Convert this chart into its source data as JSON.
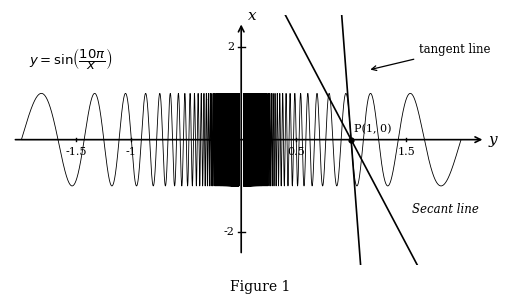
{
  "title": "Figure 1",
  "equation_label": "y = \\sin\\!\\left(\\dfrac{10\\pi}{x}\\right)",
  "x_axis_label": "x",
  "y_axis_label": "y",
  "point_label": "P(1, 0)",
  "tangent_label": "tangent line",
  "secant_label": "Secant line",
  "horiz_ticks": [
    -1.5,
    -1.0,
    0.5,
    1.5
  ],
  "horiz_tick_labels": [
    "-1.5",
    "-1",
    "0.5",
    "1.5"
  ],
  "vert_ticks": [
    2.0,
    -2.0
  ],
  "vert_tick_labels": [
    "2",
    "-2"
  ],
  "x_lim": [
    -2.1,
    2.3
  ],
  "y_lim": [
    -2.7,
    2.7
  ],
  "curve_color": "#000000",
  "background": "#ffffff",
  "tangent_slope_inv": -0.035,
  "secant_slope_inv": -0.1,
  "linewidth": 1.0
}
